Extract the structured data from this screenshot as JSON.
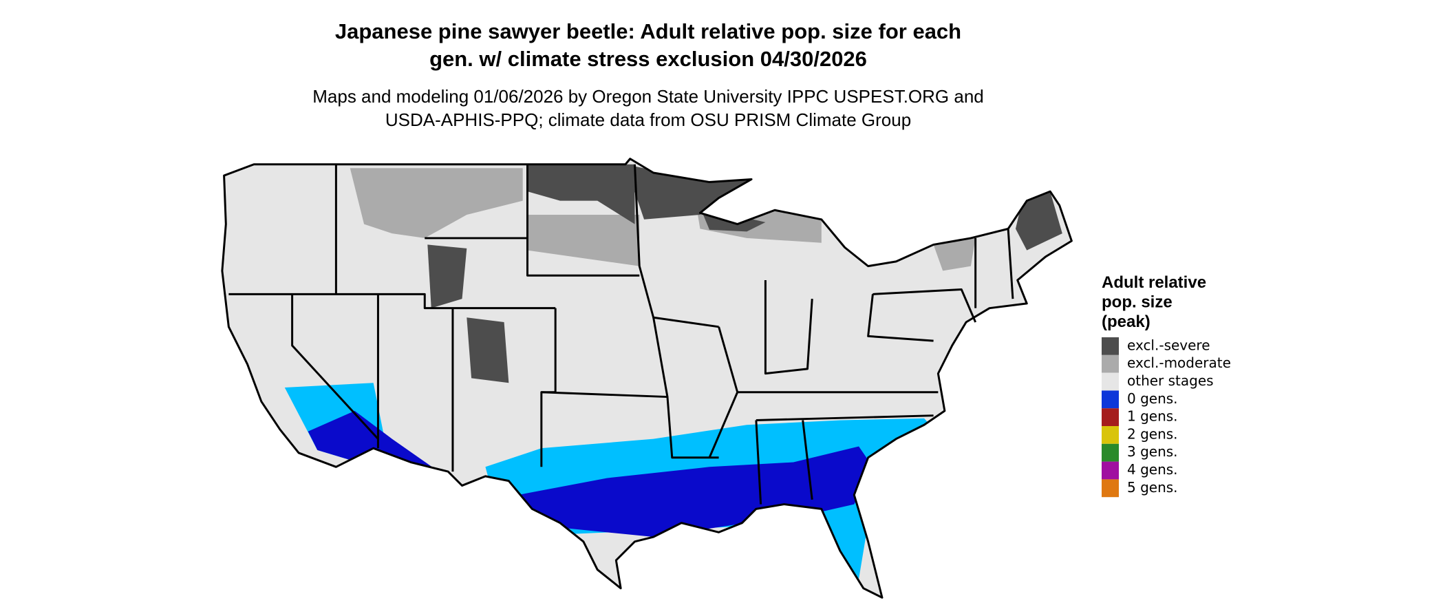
{
  "header": {
    "title_lines": [
      "Japanese pine sawyer beetle: Adult relative pop. size for each",
      "gen. w/ climate stress exclusion 04/30/2026"
    ],
    "subtitle_lines": [
      "Maps and modeling 01/06/2026 by Oregon State University IPPC USPEST.ORG and",
      "USDA-APHIS-PPQ; climate data from OSU PRISM Climate Group"
    ]
  },
  "legend": {
    "title_lines": [
      "Adult relative",
      "pop. size",
      "(peak)"
    ],
    "items": [
      {
        "label": "excl.-severe",
        "color": "#4d4d4d"
      },
      {
        "label": "excl.-moderate",
        "color": "#ababab"
      },
      {
        "label": "other stages",
        "color": "#e6e6e6"
      },
      {
        "label": "0 gens.",
        "color": "#0d37d9"
      },
      {
        "label": "1 gens.",
        "color": "#a51d1d"
      },
      {
        "label": "2 gens.",
        "color": "#d9c40a"
      },
      {
        "label": "3 gens.",
        "color": "#2a8a2a"
      },
      {
        "label": "4 gens.",
        "color": "#a00fa0"
      },
      {
        "label": "5 gens.",
        "color": "#df7811"
      }
    ]
  }
}
